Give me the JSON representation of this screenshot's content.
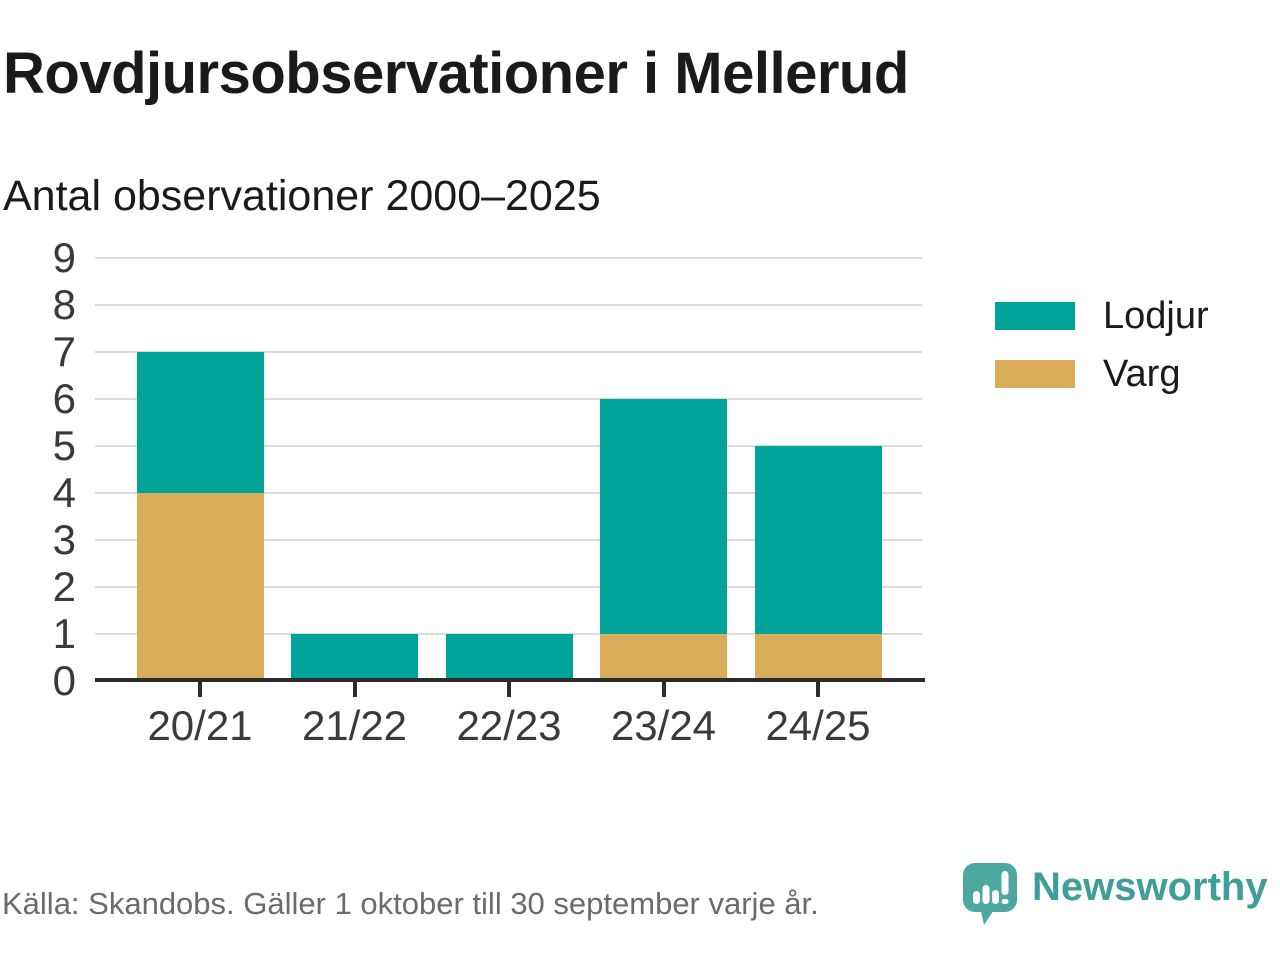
{
  "header": {
    "title": "Rovdjursobservationer i Mellerud",
    "subtitle": "Antal observationer 2000–2025"
  },
  "chart_data": {
    "type": "bar",
    "stacked": true,
    "title": "Rovdjursobservationer i Mellerud",
    "subtitle": "Antal observationer 2000–2025",
    "categories": [
      "20/21",
      "21/22",
      "22/23",
      "23/24",
      "24/25"
    ],
    "series": [
      {
        "name": "Varg",
        "color": "#D9AC5A",
        "values": [
          4,
          0,
          0,
          1,
          1
        ]
      },
      {
        "name": "Lodjur",
        "color": "#00A39A",
        "values": [
          3,
          1,
          1,
          5,
          4
        ]
      }
    ],
    "totals": [
      7,
      1,
      1,
      6,
      5
    ],
    "legend": [
      {
        "label": "Lodjur",
        "color": "#00A39A"
      },
      {
        "label": "Varg",
        "color": "#D9AC5A"
      }
    ],
    "legend_position": "right",
    "xlabel": "",
    "ylabel": "",
    "ylim": [
      0,
      9
    ],
    "yticks": [
      0,
      1,
      2,
      3,
      4,
      5,
      6,
      7,
      8,
      9
    ],
    "grid": true
  },
  "footer": {
    "source": "Källa: Skandobs. Gäller 1 oktober till 30 september varje år.",
    "brand": "Newsworthy"
  },
  "colors": {
    "lodjur": "#00A39A",
    "varg": "#D9AC5A",
    "brand_teal": "#3F9E97",
    "logo_bubble": "#4DA8A2",
    "grid": "#DBDBDB",
    "axis": "#2B2B2B",
    "text_dark": "#1A1A1A",
    "tick_label": "#3A3A3A",
    "source_gray": "#6B6B6B"
  },
  "icons": [
    {
      "name": "newsworthy-logo-icon",
      "glyph": "speech-bubble-with-bar-chart-and-exclamation"
    }
  ]
}
